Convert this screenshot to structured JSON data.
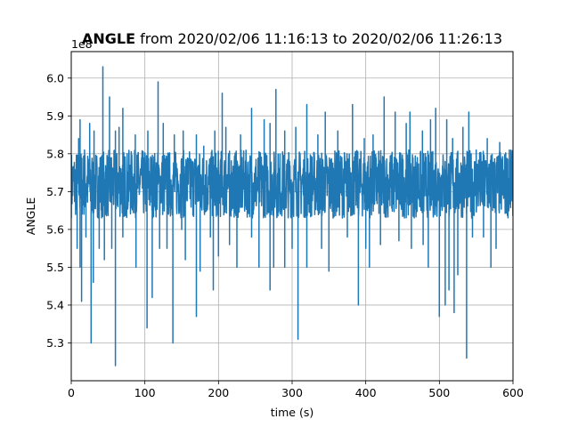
{
  "chart_data": {
    "type": "line",
    "title": {
      "bold_part": "ANGLE",
      "rest": " from 2020/02/06 11:16:13 to 2020/02/06 11:26:13"
    },
    "xlabel": "time (s)",
    "ylabel": "ANGLE",
    "y_offset_label": "1e8",
    "xlim": [
      0,
      600
    ],
    "ylim": [
      5.2,
      6.07
    ],
    "x_ticks": [
      0,
      100,
      200,
      300,
      400,
      500,
      600
    ],
    "y_ticks": [
      5.3,
      5.4,
      5.5,
      5.6,
      5.7,
      5.8,
      5.9,
      6.0
    ],
    "grid": true,
    "series_color": "#1f77b4",
    "series": [
      {
        "baseline": 5.72,
        "band": [
          5.63,
          5.81
        ],
        "spikes_up": [
          [
            10,
            5.84
          ],
          [
            12,
            5.89
          ],
          [
            18,
            5.81
          ],
          [
            25,
            5.88
          ],
          [
            31,
            5.86
          ],
          [
            43,
            6.03
          ],
          [
            52,
            5.95
          ],
          [
            60,
            5.86
          ],
          [
            65,
            5.87
          ],
          [
            70,
            5.92
          ],
          [
            87,
            5.85
          ],
          [
            104,
            5.86
          ],
          [
            118,
            5.99
          ],
          [
            125,
            5.88
          ],
          [
            140,
            5.85
          ],
          [
            152,
            5.86
          ],
          [
            170,
            5.85
          ],
          [
            180,
            5.82
          ],
          [
            195,
            5.86
          ],
          [
            205,
            5.96
          ],
          [
            210,
            5.87
          ],
          [
            230,
            5.85
          ],
          [
            245,
            5.92
          ],
          [
            262,
            5.89
          ],
          [
            270,
            5.88
          ],
          [
            278,
            5.97
          ],
          [
            290,
            5.86
          ],
          [
            305,
            5.87
          ],
          [
            320,
            5.93
          ],
          [
            335,
            5.85
          ],
          [
            345,
            5.91
          ],
          [
            362,
            5.86
          ],
          [
            382,
            5.93
          ],
          [
            398,
            5.84
          ],
          [
            410,
            5.85
          ],
          [
            425,
            5.95
          ],
          [
            440,
            5.91
          ],
          [
            455,
            5.88
          ],
          [
            460,
            5.91
          ],
          [
            477,
            5.86
          ],
          [
            488,
            5.89
          ],
          [
            495,
            5.92
          ],
          [
            510,
            5.89
          ],
          [
            518,
            5.84
          ],
          [
            532,
            5.87
          ],
          [
            540,
            5.91
          ],
          [
            550,
            5.81
          ],
          [
            565,
            5.84
          ],
          [
            582,
            5.83
          ],
          [
            595,
            5.81
          ]
        ],
        "spikes_down": [
          [
            8,
            5.55
          ],
          [
            12,
            5.5
          ],
          [
            14,
            5.41
          ],
          [
            20,
            5.58
          ],
          [
            27,
            5.3
          ],
          [
            30,
            5.46
          ],
          [
            38,
            5.55
          ],
          [
            45,
            5.52
          ],
          [
            55,
            5.55
          ],
          [
            60,
            5.24
          ],
          [
            70,
            5.58
          ],
          [
            88,
            5.5
          ],
          [
            103,
            5.34
          ],
          [
            110,
            5.42
          ],
          [
            120,
            5.55
          ],
          [
            130,
            5.55
          ],
          [
            138,
            5.3
          ],
          [
            150,
            5.6
          ],
          [
            155,
            5.52
          ],
          [
            170,
            5.37
          ],
          [
            175,
            5.49
          ],
          [
            189,
            5.58
          ],
          [
            193,
            5.44
          ],
          [
            200,
            5.53
          ],
          [
            215,
            5.56
          ],
          [
            225,
            5.5
          ],
          [
            245,
            5.58
          ],
          [
            255,
            5.5
          ],
          [
            270,
            5.44
          ],
          [
            275,
            5.5
          ],
          [
            290,
            5.5
          ],
          [
            300,
            5.55
          ],
          [
            308,
            5.31
          ],
          [
            320,
            5.5
          ],
          [
            340,
            5.55
          ],
          [
            350,
            5.49
          ],
          [
            375,
            5.58
          ],
          [
            390,
            5.4
          ],
          [
            400,
            5.55
          ],
          [
            405,
            5.5
          ],
          [
            420,
            5.56
          ],
          [
            445,
            5.57
          ],
          [
            462,
            5.55
          ],
          [
            478,
            5.56
          ],
          [
            485,
            5.5
          ],
          [
            500,
            5.37
          ],
          [
            508,
            5.4
          ],
          [
            513,
            5.44
          ],
          [
            520,
            5.38
          ],
          [
            525,
            5.48
          ],
          [
            537,
            5.26
          ],
          [
            545,
            5.58
          ],
          [
            560,
            5.58
          ],
          [
            570,
            5.5
          ],
          [
            577,
            5.55
          ]
        ]
      }
    ]
  }
}
